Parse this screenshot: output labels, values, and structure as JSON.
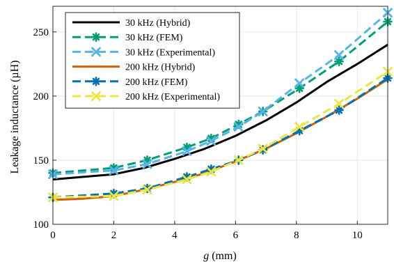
{
  "chart_data": {
    "type": "line",
    "xlabel_var": "g",
    "xlabel_unit": "(mm)",
    "ylabel": "Leakage inductance (µH)",
    "xlim": [
      0,
      11
    ],
    "ylim": [
      100,
      270
    ],
    "xticks": [
      0,
      2,
      4,
      6,
      8,
      10
    ],
    "yticks": [
      100,
      150,
      200,
      250
    ],
    "grid": true,
    "legend_position": "top-left",
    "series": [
      {
        "name": "30 kHz (Hybrid)",
        "color": "#000000",
        "dash": "solid",
        "marker": "none",
        "x": [
          0,
          1,
          2,
          3,
          4,
          5,
          6,
          7,
          8,
          9,
          10,
          11
        ],
        "y": [
          135,
          137,
          139,
          144,
          151,
          159,
          169,
          181,
          195,
          211,
          225,
          240
        ]
      },
      {
        "name": "30 kHz (FEM)",
        "color": "#009E73",
        "dash": "dashed",
        "marker": "asterisk",
        "x": [
          0,
          2,
          3.1,
          4.4,
          5.2,
          6.1,
          6.9,
          8.1,
          9.4,
          11
        ],
        "y": [
          140,
          144,
          150,
          160,
          167,
          178,
          188,
          206,
          227,
          258
        ]
      },
      {
        "name": "30 kHz (Experimental)",
        "color": "#56B4E9",
        "dash": "dashed",
        "marker": "x",
        "x": [
          0,
          2,
          3.1,
          4.4,
          5.2,
          6.1,
          6.9,
          8.1,
          9.4,
          11
        ],
        "y": [
          139,
          142,
          147,
          157,
          165,
          176,
          188,
          210,
          232,
          265
        ]
      },
      {
        "name": "200 kHz (Hybrid)",
        "color": "#D55E00",
        "dash": "solid",
        "marker": "none",
        "x": [
          0,
          1,
          2,
          3,
          4,
          5,
          6,
          7,
          8,
          9,
          10,
          11
        ],
        "y": [
          119,
          120,
          122,
          127,
          133,
          140,
          149,
          159,
          171,
          184,
          198,
          213
        ]
      },
      {
        "name": "200 kHz (FEM)",
        "color": "#0072B2",
        "dash": "dashed",
        "marker": "asterisk",
        "x": [
          0,
          2,
          3.1,
          4.4,
          5.2,
          6.1,
          6.9,
          8.1,
          9.4,
          11
        ],
        "y": [
          121,
          124,
          128,
          137,
          143,
          150,
          158,
          173,
          189,
          214
        ]
      },
      {
        "name": "200 kHz (Experimental)",
        "color": "#F0E442",
        "dash": "dashed",
        "marker": "x",
        "x": [
          0,
          2,
          3.1,
          4.4,
          5.2,
          6.1,
          6.9,
          8.1,
          9.4,
          11
        ],
        "y": [
          121,
          122,
          127,
          135,
          141,
          150,
          159,
          176,
          194,
          219
        ]
      }
    ]
  }
}
